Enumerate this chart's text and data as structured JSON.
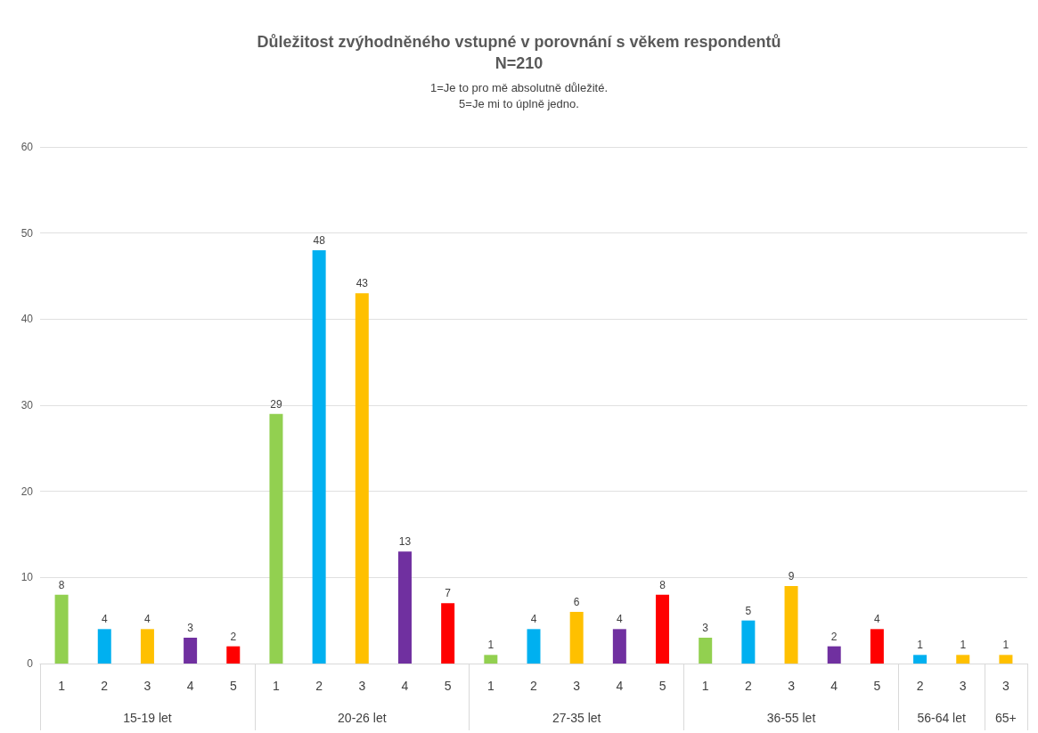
{
  "chart_data": {
    "type": "bar",
    "title": "Důležitost zvýhodněného vstupné v porovnání s věkem respondentů\nN=210",
    "subtitle": "1=Je to pro mě absolutně důležité.\n5=Je mi to úplně jedno.",
    "categories": [
      "1",
      "2",
      "3",
      "4",
      "5",
      "1",
      "2",
      "3",
      "4",
      "5",
      "1",
      "2",
      "3",
      "4",
      "5",
      "1",
      "2",
      "3",
      "4",
      "5",
      "2",
      "3",
      "3"
    ],
    "values": [
      8,
      4,
      4,
      3,
      2,
      29,
      48,
      43,
      13,
      7,
      1,
      4,
      6,
      4,
      8,
      3,
      5,
      9,
      2,
      4,
      1,
      1,
      1
    ],
    "colors": [
      "#92d050",
      "#00b0f0",
      "#ffc000",
      "#7030a0",
      "#ff0000",
      "#92d050",
      "#00b0f0",
      "#ffc000",
      "#7030a0",
      "#ff0000",
      "#92d050",
      "#00b0f0",
      "#ffc000",
      "#7030a0",
      "#ff0000",
      "#92d050",
      "#00b0f0",
      "#ffc000",
      "#7030a0",
      "#ff0000",
      "#00b0f0",
      "#ffc000",
      "#ffc000"
    ],
    "annotations": [
      "15-19 let",
      "20-26 let",
      "27-35 let",
      "36-55 let",
      "56-64 let",
      "65+"
    ],
    "ylim": [
      0,
      60
    ],
    "yticks": [
      0,
      10,
      20,
      30,
      40,
      50,
      60
    ],
    "grid": "y",
    "data_labels": true
  }
}
